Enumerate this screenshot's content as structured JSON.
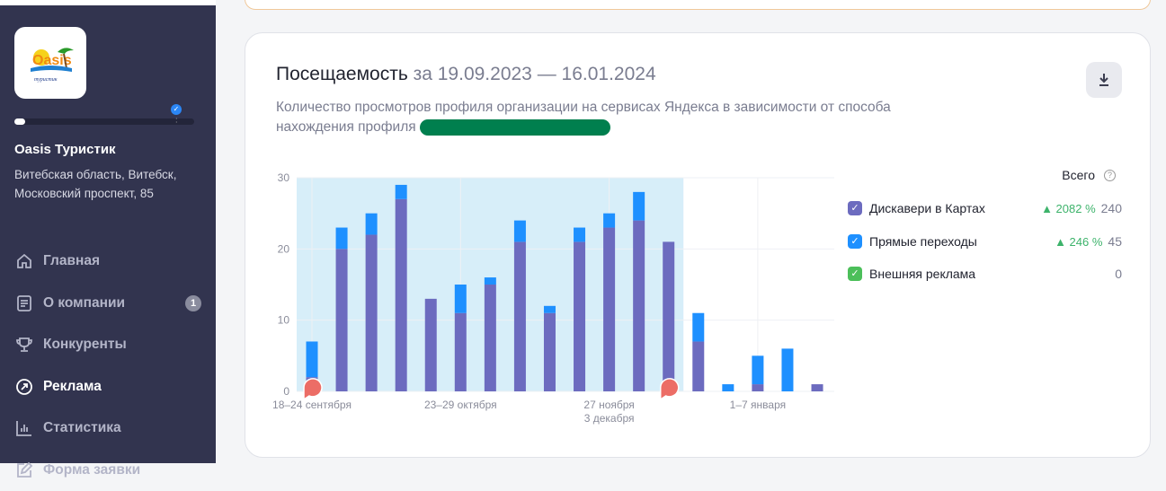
{
  "sidebar": {
    "logo_text": "Oasis туристик",
    "org_name": "Oasis Туристик",
    "org_address": "Витебская область, Витебск, Московский проспект, 85",
    "profile_progress": 0.05,
    "items": [
      {
        "label": "Главная",
        "icon": "home-icon"
      },
      {
        "label": "О компании",
        "icon": "document-icon",
        "badge": "1"
      },
      {
        "label": "Конкуренты",
        "icon": "trophy-icon"
      },
      {
        "label": "Реклама",
        "icon": "arrow-circle-icon",
        "active": true
      },
      {
        "label": "Статистика",
        "icon": "chart-icon"
      },
      {
        "label": "Форма заявки",
        "icon": "edit-icon"
      }
    ]
  },
  "card": {
    "title": "Посещаемость",
    "range": "за 19.09.2023 — 16.01.2024",
    "subtitle": "Количество просмотров профиля организации на сервисах Яндекса в зависимости от способа нахождения профиля",
    "download_icon": "download-icon"
  },
  "legend": {
    "header": "Всего",
    "items": [
      {
        "label": "Дискавери в Картах",
        "pct": "▲ 2082 %",
        "total": "240",
        "color": "#6c6bbf"
      },
      {
        "label": "Прямые переходы",
        "pct": "▲ 246 %",
        "total": "45",
        "color": "#1e90ff"
      },
      {
        "label": "Внешняя реклама",
        "pct": "",
        "total": "0",
        "color": "#4cbf5a"
      }
    ]
  },
  "chart_data": {
    "type": "bar",
    "stacked": true,
    "ylim": [
      0,
      30
    ],
    "yticks": [
      "0",
      "10",
      "20",
      "30"
    ],
    "xtick_labels": [
      {
        "index": 0,
        "label": "18–24 сентября"
      },
      {
        "index": 5,
        "label": "23–29 октября"
      },
      {
        "index": 10,
        "label": "27 ноября"
      },
      {
        "index": 10,
        "label2": "3 декабря"
      },
      {
        "index": 15,
        "label": "1–7 января"
      }
    ],
    "highlight_range": [
      0,
      12
    ],
    "markers": [
      0,
      12
    ],
    "series": [
      {
        "name": "Дискавери в Картах",
        "color": "#6c6bbf",
        "values": [
          2,
          20,
          22,
          27,
          13,
          11,
          15,
          21,
          11,
          21,
          23,
          24,
          21,
          7,
          0,
          1,
          0,
          1
        ]
      },
      {
        "name": "Прямые переходы",
        "color": "#1e90ff",
        "values": [
          5,
          3,
          3,
          2,
          0,
          4,
          1,
          3,
          1,
          2,
          2,
          4,
          0,
          4,
          1,
          4,
          6,
          0
        ]
      },
      {
        "name": "Внешняя реклама",
        "color": "#4cbf5a",
        "values": [
          0,
          0,
          0,
          0,
          0,
          0,
          0,
          0,
          0,
          0,
          0,
          0,
          0,
          0,
          0,
          0,
          0,
          0
        ]
      }
    ]
  }
}
